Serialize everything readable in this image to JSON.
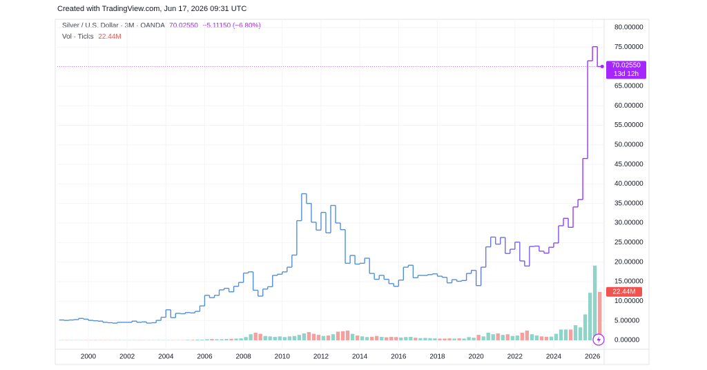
{
  "header": "Created with TradingView.com, Jun 17, 2026 09:31 UTC",
  "chart_data": {
    "type": "step",
    "symbol": "Silver / U.S. Dollar · 3M · OANDA",
    "last_price_text": "70.02550",
    "change_text": "−5.11150 (−6.80%)",
    "volume_title": "Vol · Ticks",
    "volume_text": "22.44M",
    "countdown": "13d 12h",
    "x": [
      1998.5,
      1998.75,
      1999,
      1999.25,
      1999.5,
      1999.75,
      2000,
      2000.25,
      2000.5,
      2000.75,
      2001,
      2001.25,
      2001.5,
      2001.75,
      2002,
      2002.25,
      2002.5,
      2002.75,
      2003,
      2003.25,
      2003.5,
      2003.75,
      2004,
      2004.25,
      2004.5,
      2004.75,
      2005,
      2005.25,
      2005.5,
      2005.75,
      2006,
      2006.25,
      2006.5,
      2006.75,
      2007,
      2007.25,
      2007.5,
      2007.75,
      2008,
      2008.25,
      2008.5,
      2008.75,
      2009,
      2009.25,
      2009.5,
      2009.75,
      2010,
      2010.25,
      2010.5,
      2010.75,
      2011,
      2011.25,
      2011.5,
      2011.75,
      2012,
      2012.25,
      2012.5,
      2012.75,
      2013,
      2013.25,
      2013.5,
      2013.75,
      2014,
      2014.25,
      2014.5,
      2014.75,
      2015,
      2015.25,
      2015.5,
      2015.75,
      2016,
      2016.25,
      2016.5,
      2016.75,
      2017,
      2017.25,
      2017.5,
      2017.75,
      2018,
      2018.25,
      2018.5,
      2018.75,
      2019,
      2019.25,
      2019.5,
      2019.75,
      2020,
      2020.25,
      2020.5,
      2020.75,
      2021,
      2021.25,
      2021.5,
      2021.75,
      2022,
      2022.25,
      2022.5,
      2022.75,
      2023,
      2023.25,
      2023.5,
      2023.75,
      2024,
      2024.25,
      2024.5,
      2024.75,
      2025,
      2025.25,
      2025.5,
      2025.75,
      2026,
      2026.25
    ],
    "price": {
      "color": "#4f8fd8",
      "color_end": "#a626ff",
      "values": [
        5.2,
        5.1,
        5.2,
        5.3,
        5.6,
        5.4,
        5.1,
        5.0,
        4.9,
        4.6,
        4.5,
        4.4,
        4.6,
        4.6,
        4.6,
        4.9,
        4.6,
        4.7,
        4.4,
        4.5,
        5.1,
        5.9,
        7.8,
        5.8,
        6.9,
        6.8,
        7.1,
        7.0,
        7.4,
        8.8,
        11.5,
        10.9,
        11.5,
        12.9,
        13.3,
        12.4,
        13.8,
        14.8,
        17.2,
        17.5,
        12.8,
        11.3,
        13.1,
        13.7,
        16.6,
        16.9,
        17.5,
        18.7,
        21.8,
        30.6,
        37.5,
        35.0,
        30.2,
        28.2,
        32.7,
        27.5,
        34.5,
        30.0,
        28.3,
        19.7,
        21.7,
        19.5,
        19.7,
        21.0,
        17.1,
        15.6,
        16.6,
        15.6,
        14.5,
        13.8,
        15.4,
        18.7,
        19.2,
        16.0,
        16.6,
        16.6,
        16.8,
        17.0,
        16.4,
        16.1,
        14.7,
        15.5,
        15.1,
        15.3,
        17.1,
        17.9,
        14.0,
        18.7,
        23.9,
        26.4,
        24.6,
        26.3,
        22.2,
        23.3,
        25.1,
        20.3,
        19.0,
        24.0,
        24.1,
        22.8,
        22.3,
        23.8,
        24.9,
        29.3,
        31.2,
        28.9,
        34.1,
        36.0,
        46.5,
        71.5,
        75.1,
        70.0255
      ]
    },
    "volume": {
      "up_color": "#8fd3c9",
      "down_color": "#f3a19e",
      "label_color": "#ef5350",
      "values": [
        0.1,
        0.1,
        0.1,
        0.1,
        0.1,
        0.1,
        0.1,
        0.1,
        0.1,
        0.1,
        0.1,
        0.1,
        0.1,
        0.1,
        0.1,
        0.1,
        0.1,
        0.1,
        0.1,
        0.1,
        0.1,
        0.1,
        0.1,
        0.1,
        0.1,
        0.1,
        0.2,
        0.2,
        0.3,
        0.3,
        0.5,
        0.6,
        0.5,
        0.5,
        0.6,
        0.7,
        0.8,
        0.9,
        1.5,
        2.8,
        3.5,
        3.0,
        2.0,
        1.8,
        1.6,
        1.8,
        1.5,
        1.8,
        2.0,
        2.5,
        3.2,
        3.8,
        3.0,
        2.5,
        2.0,
        2.2,
        2.8,
        4.0,
        4.2,
        4.5,
        3.0,
        2.2,
        1.8,
        1.5,
        1.6,
        2.0,
        1.6,
        1.4,
        1.6,
        1.5,
        1.3,
        1.5,
        1.6,
        1.2,
        1.0,
        1.1,
        1.0,
        0.9,
        0.8,
        0.8,
        0.9,
        0.8,
        0.9,
        0.8,
        1.5,
        1.2,
        2.5,
        1.8,
        3.5,
        2.8,
        3.2,
        2.5,
        2.8,
        2.0,
        2.2,
        3.5,
        4.5,
        2.8,
        2.2,
        1.8,
        1.6,
        1.7,
        3.0,
        5.0,
        5.0,
        5.0,
        7.0,
        6.0,
        12.0,
        22.0,
        34.6,
        22.44
      ]
    },
    "xlim": [
      1998.4,
      2026.6
    ],
    "ylim": [
      -2.3,
      82.1
    ],
    "y2lim": [
      -4.17,
      148.7
    ],
    "xticks": [
      2000,
      2002,
      2004,
      2006,
      2008,
      2010,
      2012,
      2014,
      2016,
      2018,
      2020,
      2022,
      2024,
      2026
    ],
    "yticks": [
      {
        "value": 0,
        "label": "0.00000"
      },
      {
        "value": 5,
        "label": "5.00000"
      },
      {
        "value": 10,
        "label": "10.00000"
      },
      {
        "value": 15,
        "label": "15.00000"
      },
      {
        "value": 20,
        "label": "20.00000"
      },
      {
        "value": 25,
        "label": "25.00000"
      },
      {
        "value": 30,
        "label": "30.00000"
      },
      {
        "value": 35,
        "label": "35.00000"
      },
      {
        "value": 40,
        "label": "40.00000"
      },
      {
        "value": 45,
        "label": "45.00000"
      },
      {
        "value": 50,
        "label": "50.00000"
      },
      {
        "value": 55,
        "label": "55.00000"
      },
      {
        "value": 60,
        "label": "60.00000"
      },
      {
        "value": 65,
        "label": "65.00000"
      },
      {
        "value": 70,
        "label": "70.00000"
      },
      {
        "value": 75,
        "label": "75.00000"
      },
      {
        "value": 80,
        "label": "80.00000"
      }
    ],
    "grid": true,
    "accent_color": "#a626ff"
  }
}
